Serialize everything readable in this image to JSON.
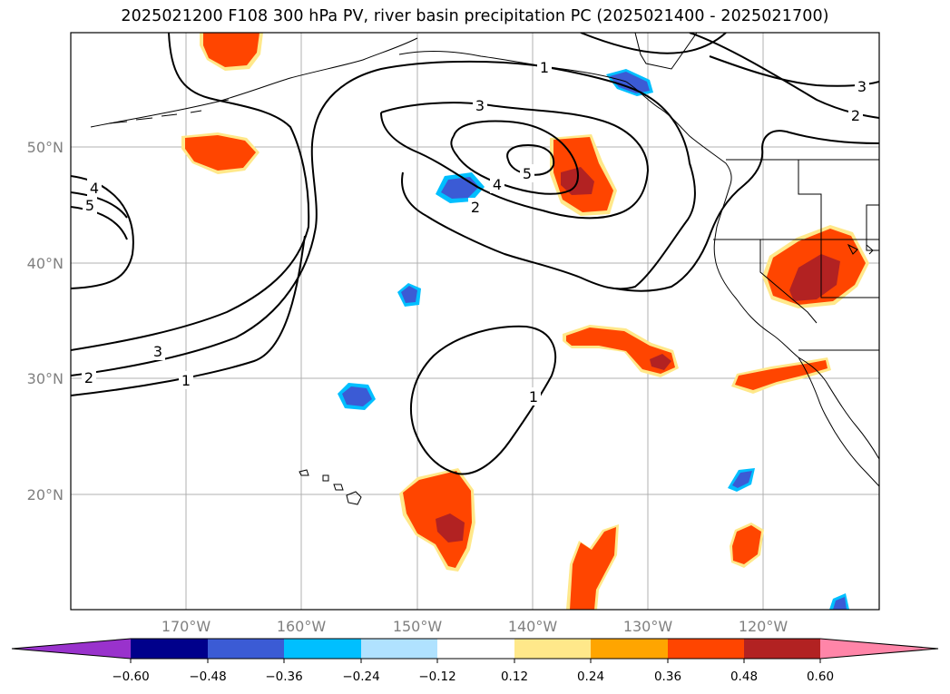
{
  "title": "2025021200 F108 300 hPa PV, river basin precipitation PC (2025021400 - 2025021700)",
  "lat_labels": [
    "50°N",
    "40°N",
    "30°N",
    "20°N"
  ],
  "lon_labels": [
    "170°W",
    "160°W",
    "150°W",
    "140°W",
    "130°W",
    "120°W"
  ],
  "contour_labels": [
    "1",
    "3",
    "4",
    "5",
    "2",
    "4",
    "5",
    "3",
    "2",
    "1",
    "3",
    "2"
  ],
  "colorbar": {
    "ticks": [
      "−0.60",
      "−0.48",
      "−0.36",
      "−0.24",
      "−0.12",
      "0.12",
      "0.24",
      "0.36",
      "0.48",
      "0.60"
    ],
    "colors": [
      "#9932cc",
      "#00008b",
      "#3b5bd5",
      "#00bfff",
      "#b0e2ff",
      "#ffffff",
      "#ffe88a",
      "#ffa500",
      "#ff4500",
      "#b22222",
      "#ff85a8"
    ]
  }
}
